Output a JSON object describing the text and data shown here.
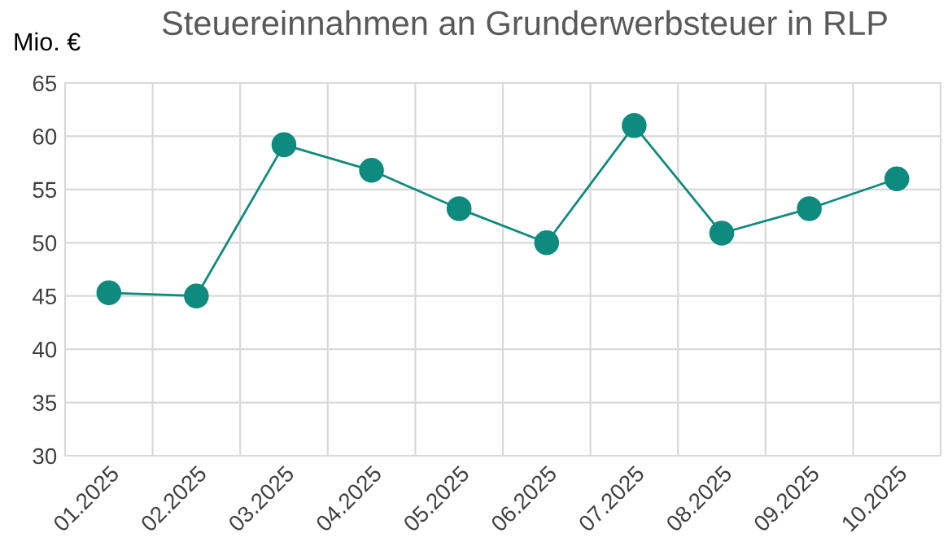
{
  "chart_data": {
    "type": "line",
    "title": "Steuereinnahmen an Grunderwerbsteuer in RLP",
    "ylabel": "Mio. €",
    "categories": [
      "01.2025",
      "02.2025",
      "03.2025",
      "04.2025",
      "05.2025",
      "06.2025",
      "07.2025",
      "08.2025",
      "09.2025",
      "10.2025"
    ],
    "series": [
      {
        "color": "#0e8a7e",
        "values": [
          45.3,
          45.0,
          59.2,
          56.8,
          53.2,
          50.0,
          61.0,
          50.9,
          53.2,
          56.0
        ]
      }
    ],
    "ylim": [
      30,
      65
    ],
    "yticks": [
      30,
      35,
      40,
      45,
      50,
      55,
      60,
      65
    ],
    "grid": true,
    "marker": "circle",
    "line_style": "solid"
  }
}
